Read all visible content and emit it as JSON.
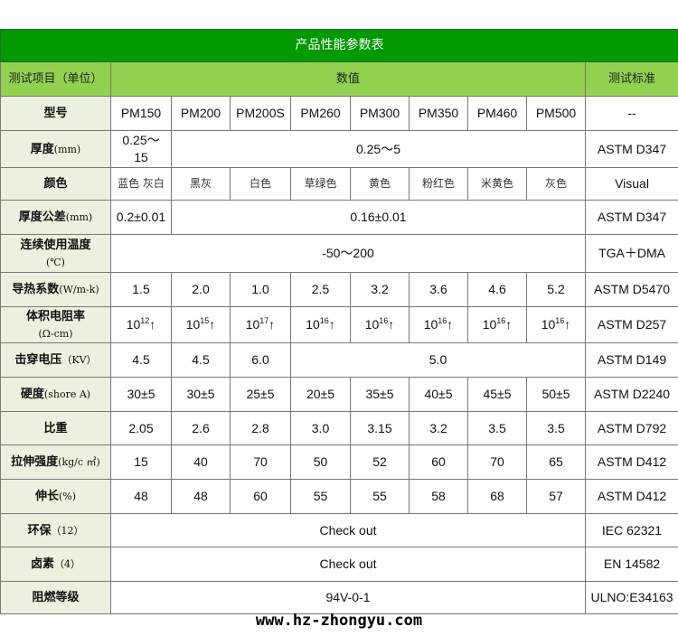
{
  "title": "产品性能参数表",
  "header": {
    "item": "测试项目（单位）",
    "values": "数值",
    "standard": "测试标准"
  },
  "rows": [
    {
      "label": "型号",
      "unit": "",
      "values": [
        "PM150",
        "PM200",
        "PM200S",
        "PM260",
        "PM300",
        "PM350",
        "PM460",
        "PM500"
      ],
      "standard": "--"
    },
    {
      "label": "厚度",
      "unit": "(mm)",
      "values": [
        "0.25～15",
        "0.25～5"
      ],
      "standard": "ASTM D347"
    },
    {
      "label": "颜色",
      "unit": "",
      "values": [
        "蓝色 灰白",
        "黑灰",
        "白色",
        "草绿色",
        "黄色",
        "粉红色",
        "米黄色",
        "灰色"
      ],
      "standard": "Visual"
    },
    {
      "label": "厚度公差",
      "unit": "(mm)",
      "values": [
        "0.2±0.01",
        "0.16±0.01"
      ],
      "standard": "ASTM D347"
    },
    {
      "label": "连续使用温度",
      "unit": "(℃)",
      "values": [
        "-50～200"
      ],
      "standard": "TGA＋DMA"
    },
    {
      "label": "导热系数",
      "unit": "(W/m-k)",
      "values": [
        "1.5",
        "2.0",
        "1.0",
        "2.5",
        "3.2",
        "3.6",
        "4.6",
        "5.2"
      ],
      "standard": "ASTM D5470"
    },
    {
      "label": "体积电阻率",
      "unit": "(Ω-cm)",
      "values": [
        {
          "base": "10",
          "exp": "12",
          "suffix": "↑"
        },
        {
          "base": "10",
          "exp": "15",
          "suffix": "↑"
        },
        {
          "base": "10",
          "exp": "17",
          "suffix": "↑"
        },
        {
          "base": "10",
          "exp": "16",
          "suffix": "↑"
        },
        {
          "base": "10",
          "exp": "16",
          "suffix": "↑"
        },
        {
          "base": "10",
          "exp": "16",
          "suffix": "↑"
        },
        {
          "base": "10",
          "exp": "16",
          "suffix": "↑"
        },
        {
          "base": "10",
          "exp": "16",
          "suffix": "↑"
        }
      ],
      "standard": "ASTM D257"
    },
    {
      "label": "击穿电压",
      "unit": "（KV）",
      "values": [
        "4.5",
        "4.5",
        "6.0",
        "5.0"
      ],
      "standard": "ASTM D149"
    },
    {
      "label": "硬度",
      "unit": "(shore A)",
      "values": [
        "30±5",
        "30±5",
        "25±5",
        "20±5",
        "35±5",
        "40±5",
        "45±5",
        "50±5"
      ],
      "standard": "ASTM D2240"
    },
    {
      "label": "比重",
      "unit": "",
      "values": [
        "2.05",
        "2.6",
        "2.8",
        "3.0",
        "3.15",
        "3.2",
        "3.5",
        "3.5"
      ],
      "standard": "ASTM D792"
    },
    {
      "label": "拉伸强度",
      "unit": "(kg/c ㎡)",
      "values": [
        "15",
        "40",
        "70",
        "50",
        "52",
        "60",
        "70",
        "65"
      ],
      "standard": "ASTM D412"
    },
    {
      "label": "伸长",
      "unit": "(%)",
      "values": [
        "48",
        "48",
        "60",
        "55",
        "55",
        "58",
        "68",
        "57"
      ],
      "standard": "ASTM D412"
    },
    {
      "label": "环保",
      "unit": "（12）",
      "values": [
        "Check out"
      ],
      "standard": "IEC 62321"
    },
    {
      "label": "卤素",
      "unit": "（4）",
      "values": [
        "Check out"
      ],
      "standard": "EN 14582"
    },
    {
      "label": "阻燃等级",
      "unit": "",
      "values": [
        "94V-0-1"
      ],
      "standard": "ULNO:E34163"
    }
  ],
  "footer": "www.hz-zhongyu.com",
  "colors": {
    "title_bg": "#009900",
    "header_bg": "#92d050",
    "label_bg": "#ebf1de"
  }
}
